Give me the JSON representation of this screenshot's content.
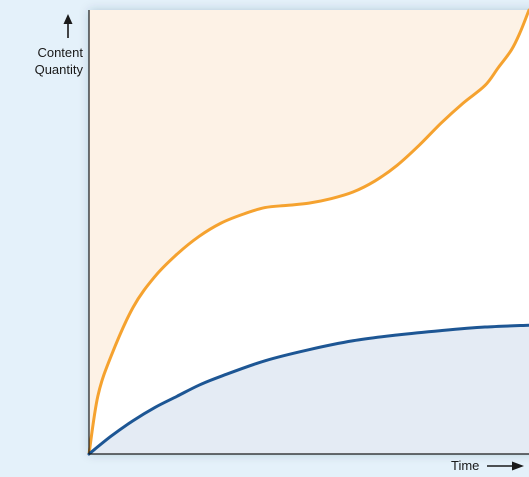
{
  "chart_data": {
    "type": "area",
    "title": "",
    "xlabel": "Time",
    "ylabel_lines": [
      "Content",
      "Quantity"
    ],
    "axis_color": "#1a1a1a",
    "background_color": "#e4f1fa",
    "grid": false,
    "legend": "none",
    "x_ticks": false,
    "y_ticks": false,
    "xlim": [
      0,
      100
    ],
    "ylim": [
      0,
      100
    ],
    "series": [
      {
        "line_color": "#f5a22f",
        "fill_color": "#fdf2e6",
        "fill": "above",
        "x": [
          0,
          2,
          5,
          10,
          15,
          20,
          25,
          30,
          35,
          40,
          45,
          50,
          55,
          60,
          65,
          70,
          75,
          80,
          85,
          90,
          93,
          96,
          98,
          100
        ],
        "y": [
          0,
          13,
          22,
          33,
          40,
          45,
          49,
          52,
          54,
          55.5,
          56,
          56.5,
          57.5,
          59,
          61.5,
          65,
          69.5,
          74.5,
          79,
          83,
          87,
          91,
          95,
          100
        ]
      },
      {
        "line_color": "#1d5694",
        "fill_color": "#e4ebf4",
        "fill": "below",
        "x": [
          0,
          5,
          10,
          15,
          20,
          25,
          30,
          40,
          50,
          60,
          70,
          80,
          90,
          100
        ],
        "y": [
          0,
          4,
          7.5,
          10.5,
          13,
          15.5,
          17.5,
          21,
          23.5,
          25.5,
          26.8,
          27.8,
          28.6,
          29
        ]
      }
    ]
  }
}
